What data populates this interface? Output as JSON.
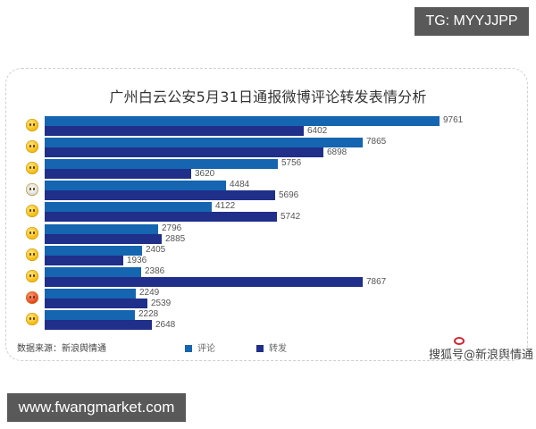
{
  "badges": {
    "top_right": "TG: MYYJJPP",
    "bottom_left": "www.fwangmarket.com"
  },
  "card": {
    "title": "广州白云公安5月31日通报微博评论转发表情分析",
    "source": "数据来源：新浪舆情通",
    "legend": [
      {
        "label": "评论",
        "color": "#1565b0"
      },
      {
        "label": "转发",
        "color": "#1f2f8a"
      }
    ],
    "watermark": "搜狐号@新浪舆情通"
  },
  "colors": {
    "comment": "#1565b0",
    "retweet": "#1f2f8a"
  },
  "chart_data": {
    "type": "bar",
    "orientation": "horizontal",
    "title": "广州白云公安5月31日通报微博评论转发表情分析",
    "xlabel": "",
    "ylabel": "",
    "categories": [
      "emoji-smirk-sweat",
      "emoji-smile",
      "emoji-thinking-question",
      "emoji-husky-dog",
      "emoji-blessing",
      "emoji-face-palm-thinking",
      "emoji-pucker",
      "emoji-laugh-cry",
      "emoji-angry-red",
      "emoji-yawn-tired"
    ],
    "series": [
      {
        "name": "评论",
        "color": "#1565b0",
        "values": [
          9761,
          7865,
          5756,
          4484,
          4122,
          2796,
          2405,
          2386,
          2249,
          2228
        ]
      },
      {
        "name": "转发",
        "color": "#1f2f8a",
        "values": [
          6402,
          6898,
          3620,
          5696,
          5742,
          2885,
          1936,
          7867,
          2539,
          2648
        ]
      }
    ],
    "legend": [
      "评论",
      "转发"
    ],
    "legend_position": "bottom",
    "grid": false,
    "data_labels": true,
    "source": "数据来源：新浪舆情通"
  }
}
